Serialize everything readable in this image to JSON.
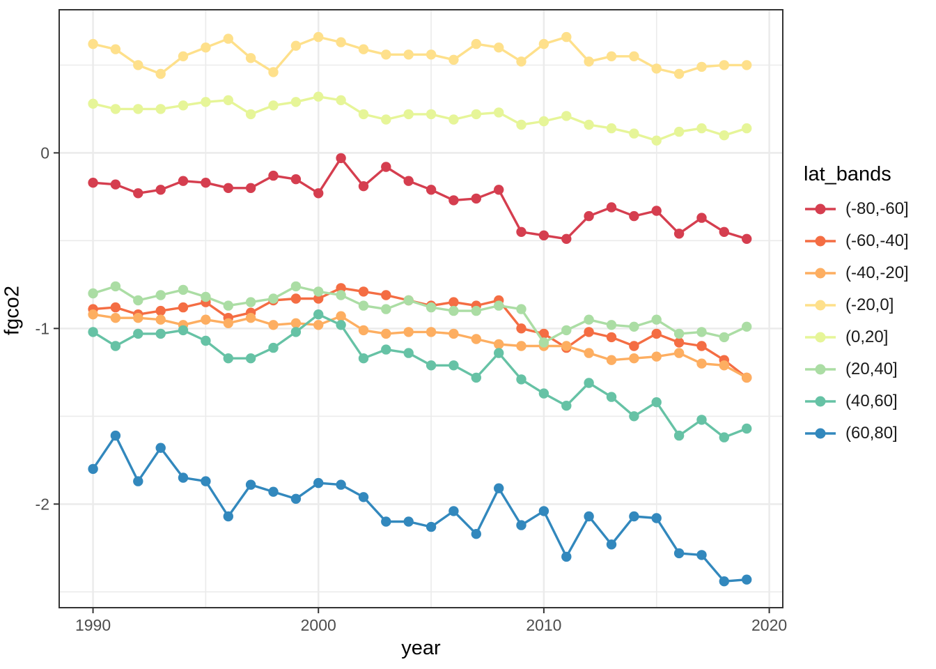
{
  "chart_data": {
    "type": "line",
    "title": "",
    "xlabel": "year",
    "ylabel": "fgco2",
    "legend_title": "lat_bands",
    "legend_position": "right",
    "grid": true,
    "background": "#FFFFFF",
    "panel_border_color": "#333333",
    "grid_color": "#EBEBEB",
    "tick_color": "#333333",
    "tick_label_color": "#4D4D4D",
    "xlim": [
      1988.5,
      2020.6
    ],
    "ylim": [
      -2.59,
      0.815
    ],
    "x_ticks": {
      "major": [
        1990,
        2000,
        2010,
        2020
      ],
      "minor": [
        1995,
        2005,
        2015
      ],
      "labels": [
        "1990",
        "2000",
        "2010",
        "2020"
      ]
    },
    "y_ticks": {
      "major": [
        0,
        -1,
        -2
      ],
      "minor": [
        0.5,
        -0.5,
        -1.5,
        -2.5
      ],
      "labels": [
        "0",
        "-1",
        "-2"
      ]
    },
    "x": [
      1990,
      1991,
      1992,
      1993,
      1994,
      1995,
      1996,
      1997,
      1998,
      1999,
      2000,
      2001,
      2002,
      2003,
      2004,
      2005,
      2006,
      2007,
      2008,
      2009,
      2010,
      2011,
      2012,
      2013,
      2014,
      2015,
      2016,
      2017,
      2018,
      2019
    ],
    "series": [
      {
        "name": "(-80,-60]",
        "color": "#D53E4F",
        "values": [
          -0.17,
          -0.18,
          -0.23,
          -0.21,
          -0.16,
          -0.17,
          -0.2,
          -0.2,
          -0.13,
          -0.15,
          -0.23,
          -0.03,
          -0.19,
          -0.08,
          -0.16,
          -0.21,
          -0.27,
          -0.26,
          -0.21,
          -0.45,
          -0.47,
          -0.49,
          -0.36,
          -0.31,
          -0.36,
          -0.33,
          -0.46,
          -0.37,
          -0.45,
          -0.49
        ]
      },
      {
        "name": "(-60,-40]",
        "color": "#F46D43",
        "values": [
          -0.89,
          -0.88,
          -0.92,
          -0.9,
          -0.88,
          -0.85,
          -0.94,
          -0.91,
          -0.84,
          -0.83,
          -0.83,
          -0.77,
          -0.79,
          -0.81,
          -0.84,
          -0.87,
          -0.85,
          -0.87,
          -0.84,
          -1.0,
          -1.03,
          -1.11,
          -1.02,
          -1.05,
          -1.1,
          -1.03,
          -1.08,
          -1.1,
          -1.18,
          -1.28
        ]
      },
      {
        "name": "(-40,-20]",
        "color": "#FDAE61",
        "values": [
          -0.92,
          -0.94,
          -0.94,
          -0.95,
          -0.98,
          -0.95,
          -0.97,
          -0.94,
          -0.98,
          -0.97,
          -0.98,
          -0.93,
          -1.01,
          -1.03,
          -1.02,
          -1.02,
          -1.03,
          -1.06,
          -1.09,
          -1.1,
          -1.1,
          -1.1,
          -1.14,
          -1.18,
          -1.17,
          -1.16,
          -1.14,
          -1.2,
          -1.21,
          -1.28
        ]
      },
      {
        "name": "(-20,0]",
        "color": "#FEE08B",
        "values": [
          0.62,
          0.59,
          0.5,
          0.45,
          0.55,
          0.6,
          0.65,
          0.54,
          0.46,
          0.61,
          0.66,
          0.63,
          0.59,
          0.56,
          0.56,
          0.56,
          0.53,
          0.62,
          0.6,
          0.52,
          0.62,
          0.66,
          0.52,
          0.55,
          0.55,
          0.48,
          0.45,
          0.49,
          0.5,
          0.5
        ]
      },
      {
        "name": "(0,20]",
        "color": "#E6F598",
        "values": [
          0.28,
          0.25,
          0.25,
          0.25,
          0.27,
          0.29,
          0.3,
          0.22,
          0.27,
          0.29,
          0.32,
          0.3,
          0.22,
          0.19,
          0.22,
          0.22,
          0.19,
          0.22,
          0.23,
          0.16,
          0.18,
          0.21,
          0.16,
          0.14,
          0.11,
          0.07,
          0.12,
          0.14,
          0.1,
          0.14
        ]
      },
      {
        "name": "(20,40]",
        "color": "#ABDDA4",
        "values": [
          -0.8,
          -0.76,
          -0.84,
          -0.81,
          -0.78,
          -0.82,
          -0.87,
          -0.85,
          -0.83,
          -0.76,
          -0.79,
          -0.81,
          -0.87,
          -0.89,
          -0.84,
          -0.88,
          -0.9,
          -0.9,
          -0.87,
          -0.89,
          -1.08,
          -1.01,
          -0.95,
          -0.98,
          -0.99,
          -0.95,
          -1.03,
          -1.02,
          -1.05,
          -0.99
        ]
      },
      {
        "name": "(40,60]",
        "color": "#66C2A5",
        "values": [
          -1.02,
          -1.1,
          -1.03,
          -1.03,
          -1.01,
          -1.07,
          -1.17,
          -1.17,
          -1.11,
          -1.02,
          -0.92,
          -0.98,
          -1.17,
          -1.12,
          -1.14,
          -1.21,
          -1.21,
          -1.28,
          -1.14,
          -1.29,
          -1.37,
          -1.44,
          -1.31,
          -1.39,
          -1.5,
          -1.42,
          -1.61,
          -1.52,
          -1.62,
          -1.57
        ]
      },
      {
        "name": "(60,80]",
        "color": "#3288BD",
        "values": [
          -1.8,
          -1.61,
          -1.87,
          -1.68,
          -1.85,
          -1.87,
          -2.07,
          -1.89,
          -1.93,
          -1.97,
          -1.88,
          -1.89,
          -1.96,
          -2.1,
          -2.1,
          -2.13,
          -2.04,
          -2.17,
          -1.91,
          -2.12,
          -2.04,
          -2.3,
          -2.07,
          -2.23,
          -2.07,
          -2.08,
          -2.28,
          -2.29,
          -2.44,
          -2.43
        ]
      }
    ]
  }
}
